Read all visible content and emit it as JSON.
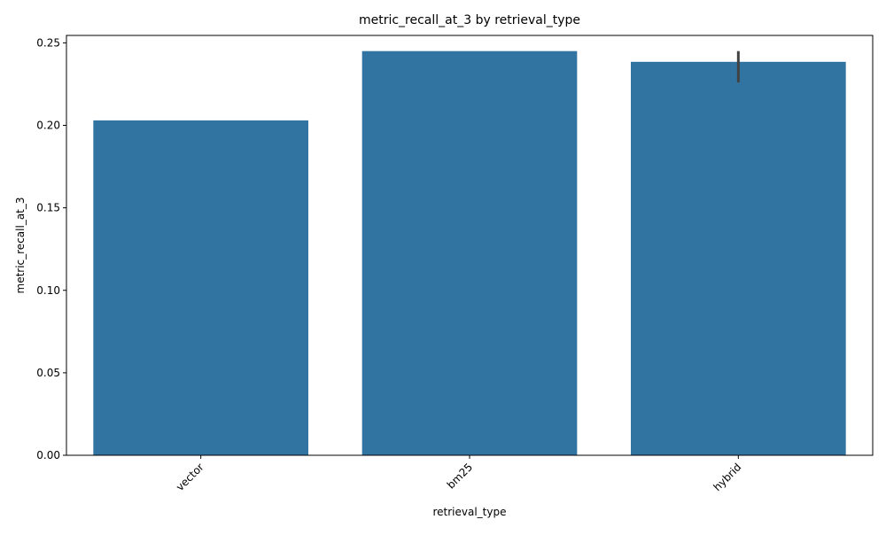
{
  "chart_data": {
    "type": "bar",
    "title": "metric_recall_at_3 by retrieval_type",
    "xlabel": "retrieval_type",
    "ylabel": "metric_recall_at_3",
    "categories": [
      "vector",
      "bm25",
      "hybrid"
    ],
    "values": [
      0.203,
      0.245,
      0.2385
    ],
    "error_bars": [
      null,
      null,
      [
        0.226,
        0.245
      ]
    ],
    "ylim": [
      0,
      0.2545
    ],
    "yticks": [
      0.0,
      0.05,
      0.1,
      0.15,
      0.2,
      0.25
    ],
    "ytick_labels": [
      "0.00",
      "0.05",
      "0.10",
      "0.15",
      "0.20",
      "0.25"
    ],
    "xtick_rotation": 45,
    "grid": false,
    "colors": {
      "bar": "#3274a1",
      "error_bar": "#424242",
      "axis": "#000000"
    }
  }
}
